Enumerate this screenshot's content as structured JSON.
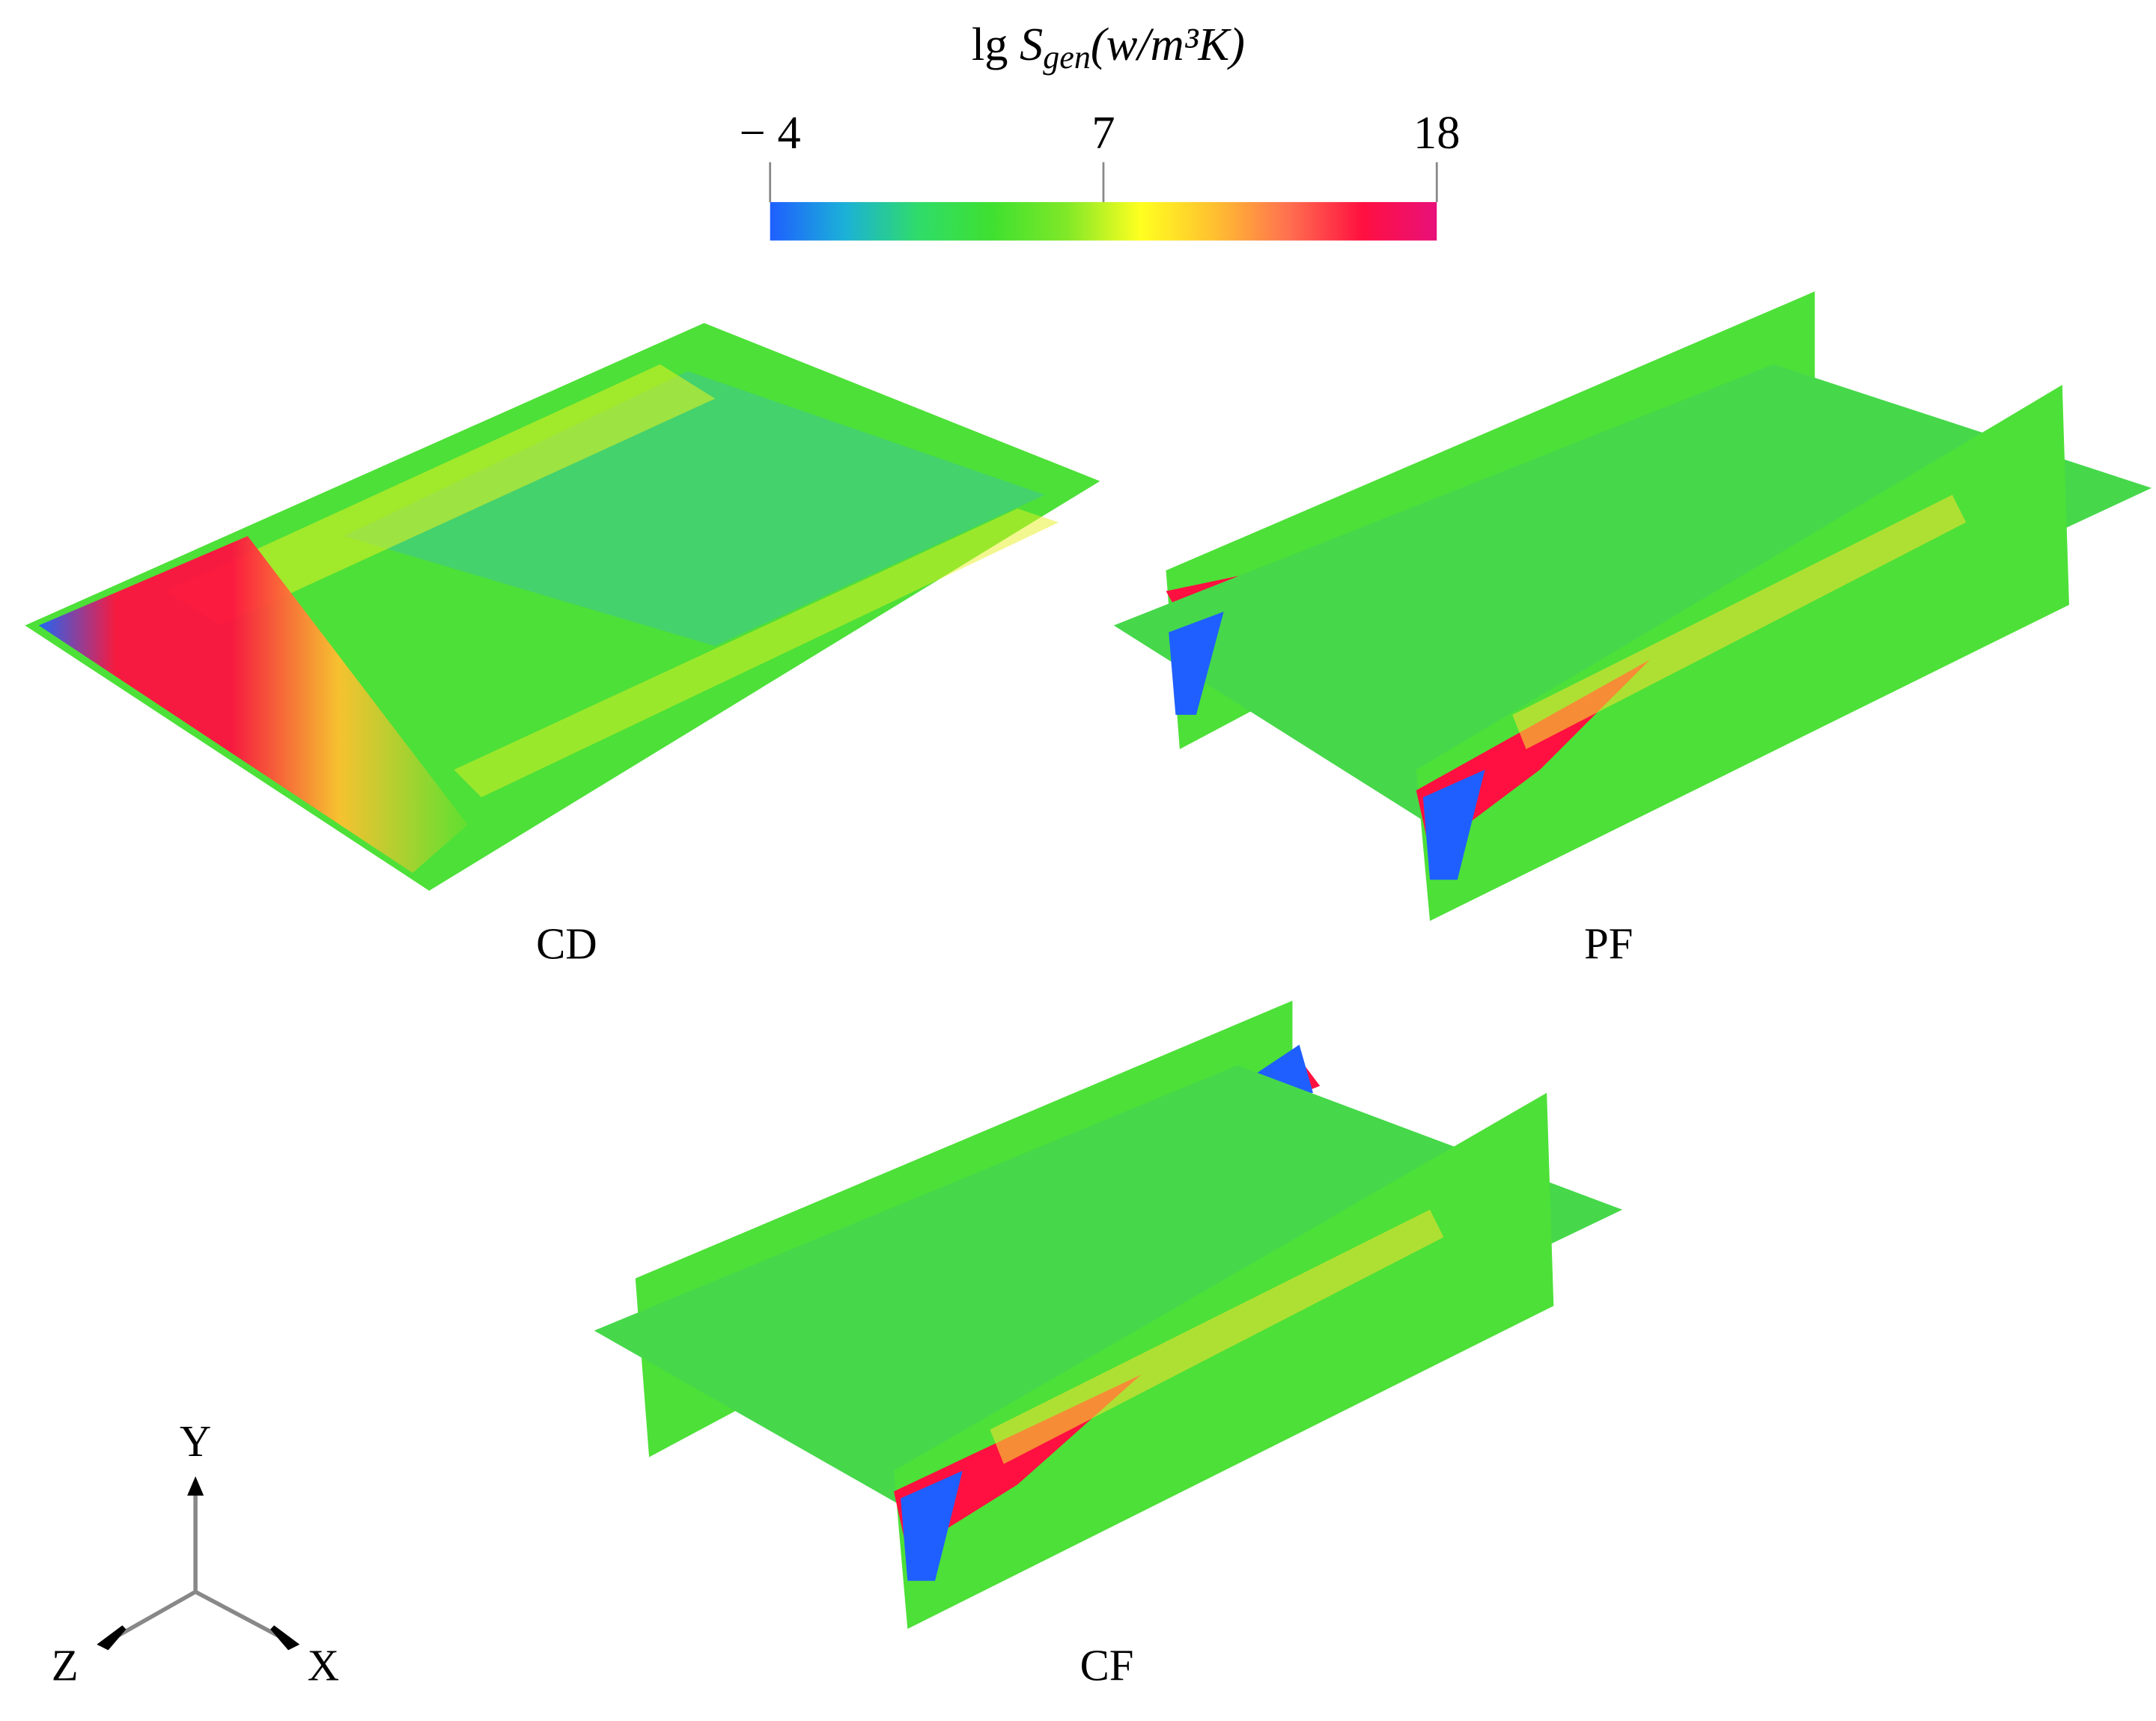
{
  "colorbar": {
    "title": {
      "prefix": "lg",
      "symbol": "S",
      "subscript": "gen",
      "unit": "(w/m³K)"
    },
    "lim": [
      -4,
      18
    ],
    "ticks": [
      {
        "value": -4,
        "label": "− 4"
      },
      7,
      18
    ],
    "colormap": [
      "#1f5fff",
      "#1bb0d8",
      "#2fdc6a",
      "#3fe030",
      "#80e828",
      "#ffff20",
      "#ffc030",
      "#ff7050",
      "#ff1040",
      "#e8107a"
    ]
  },
  "panels": [
    {
      "label": "CD"
    },
    {
      "label": "PF"
    },
    {
      "label": "CF"
    }
  ],
  "axes": {
    "y": "Y",
    "z": "Z",
    "x": "X"
  }
}
